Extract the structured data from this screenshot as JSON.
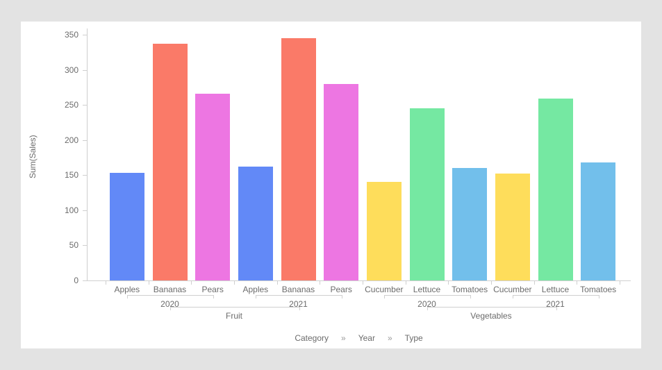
{
  "colors": {
    "background": "#e3e3e3",
    "panel": "#ffffff",
    "axis_line": "#cfcfcf",
    "label_text": "#6b6b6b",
    "separator_text": "#9a9a9a"
  },
  "chart_data": {
    "type": "bar",
    "title": "",
    "ylabel": "Sum(Sales)",
    "xlabel": "",
    "ylim": [
      0,
      350
    ],
    "ytick_step": 50,
    "yticks": [
      0,
      50,
      100,
      150,
      200,
      250,
      300,
      350
    ],
    "grid": false,
    "legend": null,
    "hierarchy_caption": {
      "levels": [
        "Category",
        "Year",
        "Type"
      ],
      "separator": "»"
    },
    "series_colors": {
      "Apples": "#6289f7",
      "Bananas": "#fa7a68",
      "Pears": "#ed76e2",
      "Cucumber": "#fedd5b",
      "Lettuce": "#75e8a2",
      "Tomatoes": "#72bfeb"
    },
    "categories": [
      {
        "label": "Fruit",
        "groups": [
          {
            "label": "2020",
            "bars": [
              {
                "label": "Apples",
                "value": 153,
                "color": "#6289f7"
              },
              {
                "label": "Bananas",
                "value": 337,
                "color": "#fa7a68"
              },
              {
                "label": "Pears",
                "value": 266,
                "color": "#ed76e2"
              }
            ]
          },
          {
            "label": "2021",
            "bars": [
              {
                "label": "Apples",
                "value": 162,
                "color": "#6289f7"
              },
              {
                "label": "Bananas",
                "value": 345,
                "color": "#fa7a68"
              },
              {
                "label": "Pears",
                "value": 280,
                "color": "#ed76e2"
              }
            ]
          }
        ]
      },
      {
        "label": "Vegetables",
        "groups": [
          {
            "label": "2020",
            "bars": [
              {
                "label": "Cucumber",
                "value": 140,
                "color": "#fedd5b"
              },
              {
                "label": "Lettuce",
                "value": 245,
                "color": "#75e8a2"
              },
              {
                "label": "Tomatoes",
                "value": 160,
                "color": "#72bfeb"
              }
            ]
          },
          {
            "label": "2021",
            "bars": [
              {
                "label": "Cucumber",
                "value": 152,
                "color": "#fedd5b"
              },
              {
                "label": "Lettuce",
                "value": 259,
                "color": "#75e8a2"
              },
              {
                "label": "Tomatoes",
                "value": 168,
                "color": "#72bfeb"
              }
            ]
          }
        ]
      }
    ]
  }
}
